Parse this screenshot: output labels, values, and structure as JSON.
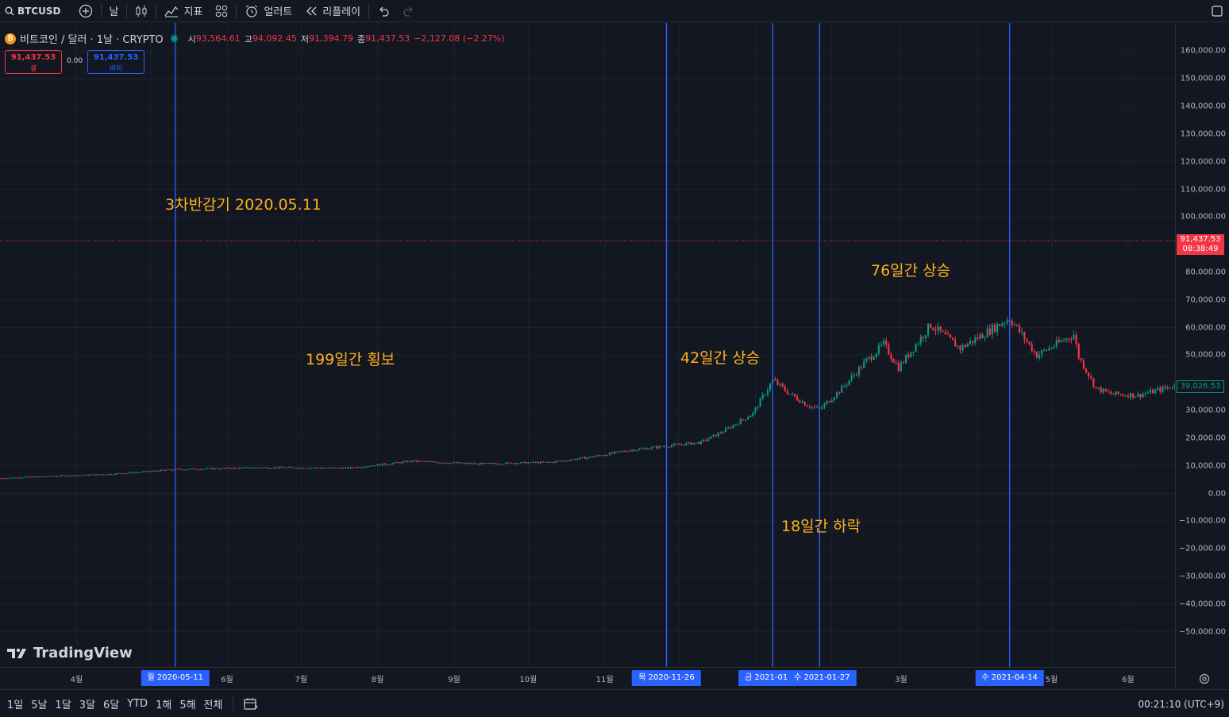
{
  "toolbar": {
    "symbol": "BTCUSD",
    "interval": "날",
    "indicators_label": "지표",
    "alerts_label": "얼러트",
    "replay_label": "리플레이"
  },
  "legend": {
    "title": "비트코인 / 달러 · 1날 · CRYPTO",
    "open_k": "시",
    "open": "93,564.61",
    "high_k": "고",
    "high": "94,092.45",
    "low_k": "저",
    "low": "91,394.79",
    "close_k": "종",
    "close": "91,437.53",
    "change": "−2,127.08 (−2.27%)",
    "sell_price": "91,437.53",
    "sell_label": "셀",
    "spread": "0.00",
    "buy_price": "91,437.53",
    "buy_label": "바이"
  },
  "annotations": {
    "halving": "3차반감기 2020.05.11",
    "sideways": "199일간 횡보",
    "rise42": "42일간 상승",
    "fall18": "18일간 하락",
    "rise76": "76일간 상승"
  },
  "price_axis": {
    "ticks": [
      "160,000.00",
      "150,000.00",
      "140,000.00",
      "130,000.00",
      "120,000.00",
      "110,000.00",
      "100,000.00",
      "80,000.00",
      "70,000.00",
      "60,000.00",
      "50,000.00",
      "30,000.00",
      "20,000.00",
      "10,000.00",
      "0.00",
      "−10,000.00",
      "−20,000.00",
      "−30,000.00",
      "−40,000.00",
      "−50,000.00"
    ],
    "last_price": "91,437.53",
    "countdown": "08:38:49",
    "cursor_price": "39,026.53"
  },
  "time_axis": {
    "months": [
      "4월",
      "6월",
      "7월",
      "8월",
      "9월",
      "10월",
      "11월",
      "3월",
      "4",
      "5월",
      "6월"
    ],
    "markers": [
      "월 2020-05-11",
      "목 2020-11-26",
      "금 2021-01-",
      "수 2021-01-27",
      "수 2021-04-14"
    ]
  },
  "bottom_bar": {
    "ranges": [
      "1일",
      "5날",
      "1달",
      "3달",
      "6달",
      "YTD",
      "1해",
      "5해",
      "전체"
    ],
    "clock": "00:21:10 (UTC+9)"
  },
  "brand": "TradingView",
  "colors": {
    "up": "#089981",
    "down": "#f23645",
    "marker": "#2962ff",
    "note": "#ffb11a",
    "background": "#131722"
  },
  "chart_data": {
    "type": "candlestick",
    "title": "비트코인 / 달러 · 1날 · CRYPTO",
    "x_range": [
      "2020-03-01",
      "2021-06-20"
    ],
    "ylim": [
      -55000,
      165000
    ],
    "price_line": 91437.53,
    "vertical_markers": [
      "2020-05-11",
      "2020-11-26",
      "2021-01-08",
      "2021-01-27",
      "2021-04-14"
    ],
    "trend": {
      "x": [
        "2020-03-01",
        "2020-03-20",
        "2020-04-15",
        "2020-05-11",
        "2020-06-15",
        "2020-07-20",
        "2020-08-15",
        "2020-09-10",
        "2020-10-10",
        "2020-10-25",
        "2020-11-10",
        "2020-11-26",
        "2020-12-10",
        "2020-12-20",
        "2020-12-31",
        "2021-01-08",
        "2021-01-15",
        "2021-01-22",
        "2021-01-27",
        "2021-02-05",
        "2021-02-15",
        "2021-02-22",
        "2021-02-28",
        "2021-03-13",
        "2021-03-25",
        "2021-04-05",
        "2021-04-14",
        "2021-04-25",
        "2021-05-10",
        "2021-05-12",
        "2021-05-19",
        "2021-05-25",
        "2021-06-05",
        "2021-06-20"
      ],
      "y": [
        5500,
        6200,
        7000,
        8700,
        9400,
        9200,
        11700,
        10700,
        11300,
        13000,
        15500,
        17200,
        18500,
        23000,
        29000,
        41000,
        36000,
        32000,
        30400,
        38000,
        48000,
        54000,
        45500,
        61000,
        52500,
        58500,
        63500,
        50000,
        57500,
        49500,
        38000,
        36000,
        35500,
        39000
      ]
    }
  }
}
